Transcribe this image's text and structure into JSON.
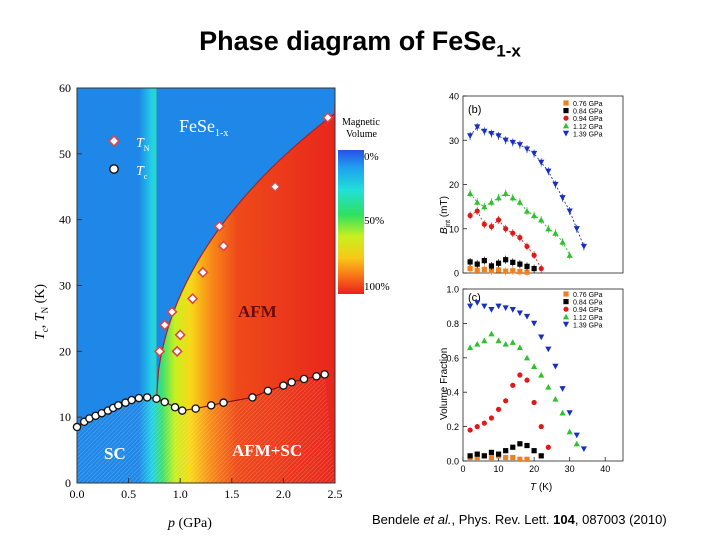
{
  "title_main": "Phase diagram of FeSe",
  "title_sub": "1-x",
  "citation": {
    "authors": "Bendele ",
    "etal": "et al.",
    "journal": ", Phys. Rev. Lett. ",
    "volume": "104",
    "rest": ", 087003 (2010)"
  },
  "colors": {
    "sc_blue": "#1f87e8",
    "afm_red": "#e8261c",
    "tn_marker": "#d8484a",
    "series_076": "#f08020",
    "series_084": "#000000",
    "series_094": "#e01818",
    "series_112": "#30c030",
    "series_139": "#1830c0"
  },
  "chart_data": [
    {
      "type": "scatter",
      "title": "",
      "xlabel": "p (GPa)",
      "ylabel": "Tc, TN (K)",
      "xlim": [
        0.0,
        2.5
      ],
      "ylim": [
        0,
        60
      ],
      "xticks": [
        "0.0",
        "0.5",
        "1.0",
        "1.5",
        "2.0",
        "2.5"
      ],
      "yticks": [
        "0",
        "10",
        "20",
        "30",
        "40",
        "50",
        "60"
      ],
      "compound": "FeSe",
      "compound_sub": "1-x",
      "region_labels": [
        "AFM",
        "SC",
        "AFM+SC"
      ],
      "legend": [
        {
          "symbol": "T",
          "sub": "N"
        },
        {
          "symbol": "T",
          "sub": "c"
        }
      ],
      "colorbar": {
        "title": "Magnetic Volume",
        "labels": [
          "0%",
          "50%",
          "100%"
        ]
      },
      "series": [
        {
          "name": "TN",
          "x": [
            0.8,
            0.85,
            0.92,
            0.97,
            1.0,
            1.12,
            1.22,
            1.38,
            1.42,
            1.92,
            2.43
          ],
          "y": [
            20,
            24,
            26,
            20,
            22.5,
            28,
            32,
            39,
            36,
            45,
            55.5
          ]
        },
        {
          "name": "Tc",
          "x": [
            0.0,
            0.07,
            0.12,
            0.18,
            0.24,
            0.3,
            0.35,
            0.4,
            0.47,
            0.53,
            0.6,
            0.68,
            0.77,
            0.85,
            0.95,
            1.02,
            1.15,
            1.3,
            1.42,
            1.7,
            1.85,
            2.0,
            2.08,
            2.2,
            2.32,
            2.4
          ],
          "y": [
            8.5,
            9.3,
            9.8,
            10.2,
            10.6,
            11.0,
            11.4,
            11.8,
            12.2,
            12.6,
            12.9,
            13.0,
            12.8,
            12.3,
            11.5,
            11.0,
            11.3,
            11.8,
            12.2,
            13.0,
            14.0,
            14.8,
            15.3,
            15.8,
            16.2,
            16.5
          ]
        }
      ]
    },
    {
      "type": "scatter",
      "panel_label": "(b)",
      "xlabel": "",
      "ylabel": "Bint (mT)",
      "xlim": [
        0,
        45
      ],
      "ylim": [
        0,
        40
      ],
      "yticks": [
        "0",
        "10",
        "20",
        "30",
        "40"
      ],
      "legend_position": "top-right",
      "series": [
        {
          "name": "0.76 GPa",
          "x": [
            2,
            4,
            6,
            8,
            10,
            12,
            14,
            16,
            18
          ],
          "y": [
            1,
            0.6,
            0.8,
            0.5,
            0.7,
            0.4,
            0.5,
            0.3,
            0.2
          ]
        },
        {
          "name": "0.84 GPa",
          "x": [
            2,
            4,
            6,
            8,
            10,
            12,
            14,
            16,
            18,
            20
          ],
          "y": [
            2.5,
            2,
            2.8,
            1.6,
            2.2,
            3,
            2.4,
            2,
            1.5,
            1
          ]
        },
        {
          "name": "0.94 GPa",
          "x": [
            2,
            4,
            6,
            8,
            10,
            12,
            14,
            16,
            18,
            20,
            22
          ],
          "y": [
            13,
            14,
            11,
            10.5,
            12,
            10,
            9,
            8,
            6,
            4,
            1
          ]
        },
        {
          "name": "1.12 GPa",
          "x": [
            2,
            4,
            6,
            8,
            10,
            12,
            14,
            16,
            18,
            20,
            22,
            24,
            26,
            28,
            30
          ],
          "y": [
            18,
            16,
            15,
            16,
            17,
            18,
            17,
            16,
            14,
            13,
            12,
            10,
            9,
            7,
            4
          ]
        },
        {
          "name": "1.39 GPa",
          "x": [
            2,
            4,
            6,
            8,
            10,
            12,
            14,
            16,
            18,
            20,
            22,
            24,
            26,
            28,
            30,
            32,
            34
          ],
          "y": [
            31,
            33,
            32,
            31.5,
            31,
            30,
            29.5,
            29,
            28,
            27,
            25,
            23,
            20,
            17,
            14,
            10,
            6
          ]
        }
      ]
    },
    {
      "type": "scatter",
      "panel_label": "(c)",
      "xlabel": "T (K)",
      "ylabel": "Volume Fraction",
      "xlim": [
        0,
        45
      ],
      "ylim": [
        0,
        1.0
      ],
      "xticks": [
        "0",
        "10",
        "20",
        "30",
        "40"
      ],
      "yticks": [
        "0.0",
        "0.2",
        "0.4",
        "0.6",
        "0.8",
        "1.0"
      ],
      "legend_position": "top-right",
      "series": [
        {
          "name": "0.76 GPa",
          "x": [
            2,
            4,
            6,
            8,
            10,
            12,
            14,
            16,
            18
          ],
          "y": [
            0.02,
            0.02,
            0.03,
            0.02,
            0.03,
            0.02,
            0.02,
            0.01,
            0.01
          ]
        },
        {
          "name": "0.84 GPa",
          "x": [
            2,
            4,
            6,
            8,
            10,
            12,
            14,
            16,
            18,
            20,
            22
          ],
          "y": [
            0.03,
            0.04,
            0.03,
            0.05,
            0.04,
            0.06,
            0.08,
            0.1,
            0.09,
            0.06,
            0.03
          ]
        },
        {
          "name": "0.94 GPa",
          "x": [
            2,
            4,
            6,
            8,
            10,
            12,
            14,
            16,
            18,
            20,
            22,
            24
          ],
          "y": [
            0.18,
            0.2,
            0.22,
            0.25,
            0.3,
            0.35,
            0.44,
            0.5,
            0.47,
            0.34,
            0.2,
            0.08
          ]
        },
        {
          "name": "1.12 GPa",
          "x": [
            2,
            4,
            6,
            8,
            10,
            12,
            14,
            16,
            18,
            20,
            22,
            24,
            26,
            28,
            30,
            32
          ],
          "y": [
            0.66,
            0.68,
            0.7,
            0.74,
            0.7,
            0.68,
            0.69,
            0.66,
            0.6,
            0.55,
            0.5,
            0.43,
            0.36,
            0.28,
            0.17,
            0.1
          ]
        },
        {
          "name": "1.39 GPa",
          "x": [
            2,
            4,
            6,
            8,
            10,
            12,
            14,
            16,
            18,
            20,
            22,
            24,
            26,
            28,
            30,
            32,
            34
          ],
          "y": [
            0.9,
            0.92,
            0.9,
            0.88,
            0.9,
            0.89,
            0.88,
            0.86,
            0.84,
            0.8,
            0.72,
            0.65,
            0.55,
            0.42,
            0.28,
            0.15,
            0.07
          ]
        }
      ]
    }
  ]
}
